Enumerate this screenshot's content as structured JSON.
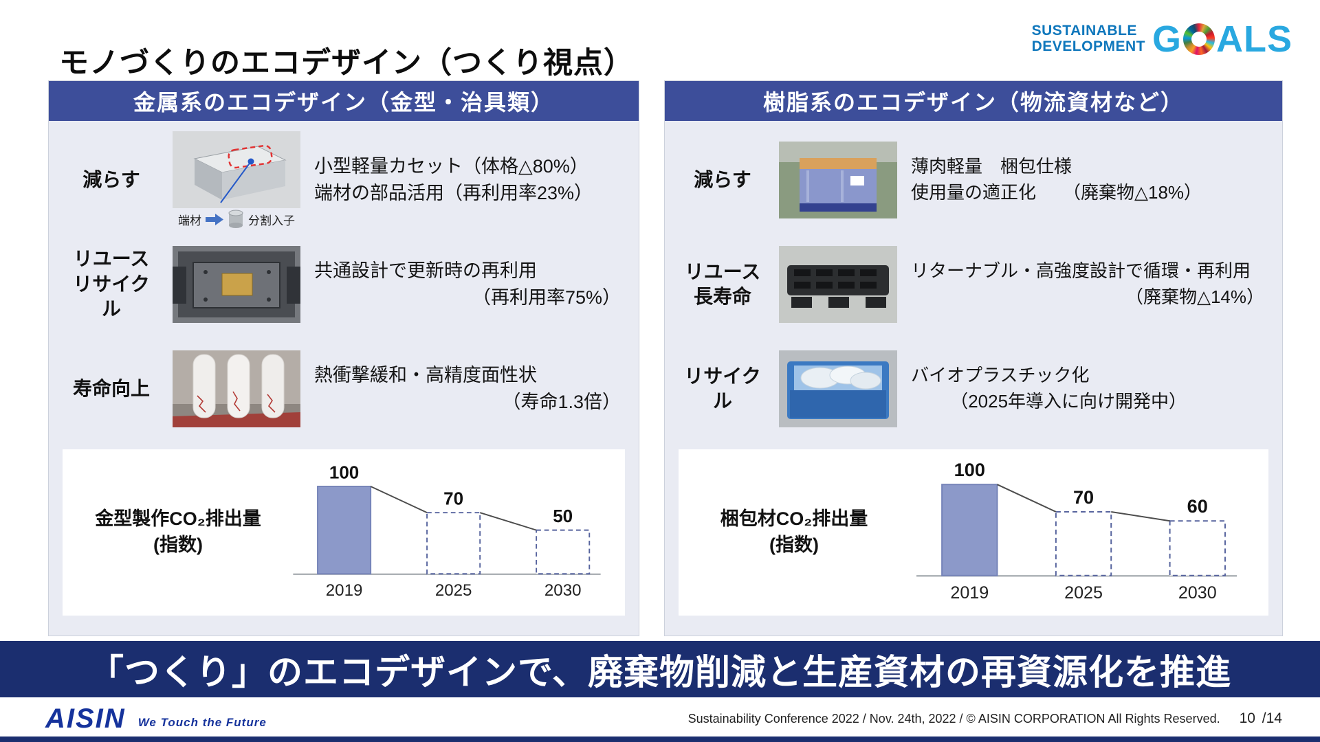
{
  "title": "モノづくりのエコデザイン（つくり視点）",
  "sdg": {
    "line1": "SUSTAINABLE",
    "line2": "DEVELOPMENT",
    "g": "G",
    "als": "ALS"
  },
  "panels": [
    {
      "header": "金属系のエコデザイン（金型・治具類）",
      "rows": [
        {
          "label": [
            "減らす"
          ],
          "text": [
            "小型軽量カセット（体格△80%）",
            "端材の部品活用（再利用率23%）"
          ],
          "caption_left": "端材",
          "caption_right": "分割入子"
        },
        {
          "label": [
            "リユース",
            "リサイクル"
          ],
          "text": [
            "共通設計で更新時の再利用",
            "（再利用率75%）"
          ]
        },
        {
          "label": [
            "寿命向上"
          ],
          "text": [
            "熱衝撃緩和・高精度面性状",
            "（寿命1.3倍）"
          ]
        }
      ]
    },
    {
      "header": "樹脂系のエコデザイン（物流資材など）",
      "rows": [
        {
          "label": [
            "減らす"
          ],
          "text": [
            "薄肉軽量　梱包仕様",
            "使用量の適正化　　（廃棄物△18%）"
          ]
        },
        {
          "label": [
            "リユース",
            "長寿命"
          ],
          "text": [
            "リターナブル・高強度設計で循環・再利用",
            "（廃棄物△14%）"
          ]
        },
        {
          "label": [
            "リサイクル"
          ],
          "text": [
            "バイオプラスチック化",
            "（2025年導入に向け開発中）"
          ]
        }
      ]
    }
  ],
  "chart_data": [
    {
      "type": "bar",
      "title": "金型製作CO₂排出量（指数）",
      "label_lines": [
        "金型製作CO₂排出量",
        "(指数)"
      ],
      "categories": [
        "2019",
        "2025",
        "2030"
      ],
      "values": [
        100,
        70,
        50
      ],
      "ylim": [
        0,
        115
      ],
      "bar_styles": [
        "solid",
        "dashed",
        "dashed"
      ],
      "line_overlay": true,
      "grid": false,
      "legend": "none"
    },
    {
      "type": "bar",
      "title": "梱包材CO₂排出量（指数）",
      "label_lines": [
        "梱包材CO₂排出量",
        "(指数)"
      ],
      "categories": [
        "2019",
        "2025",
        "2030"
      ],
      "values": [
        100,
        70,
        60
      ],
      "ylim": [
        0,
        115
      ],
      "bar_styles": [
        "solid",
        "dashed",
        "dashed"
      ],
      "line_overlay": true,
      "grid": false,
      "legend": "none"
    }
  ],
  "banner": "「つくり」のエコデザインで、廃棄物削減と生産資材の再資源化を推進",
  "footer": {
    "logo": "AISIN",
    "tagline": "We Touch the Future",
    "credit": "Sustainability Conference 2022 / Nov. 24th, 2022 / © AISIN CORPORATION All Rights Reserved.",
    "page": "10",
    "page_total": "/14"
  },
  "colors": {
    "panel_header_bg": "#3d4e9a",
    "panel_bg": "#e9ebf3",
    "banner_bg": "#1b2e6f",
    "bar_fill": "#8c99c9",
    "bar_dash_stroke": "#57649e",
    "sdg_text_blue": "#0f77bc",
    "sdg_goals_blue": "#29a8e0",
    "aisin_blue": "#16339c"
  }
}
